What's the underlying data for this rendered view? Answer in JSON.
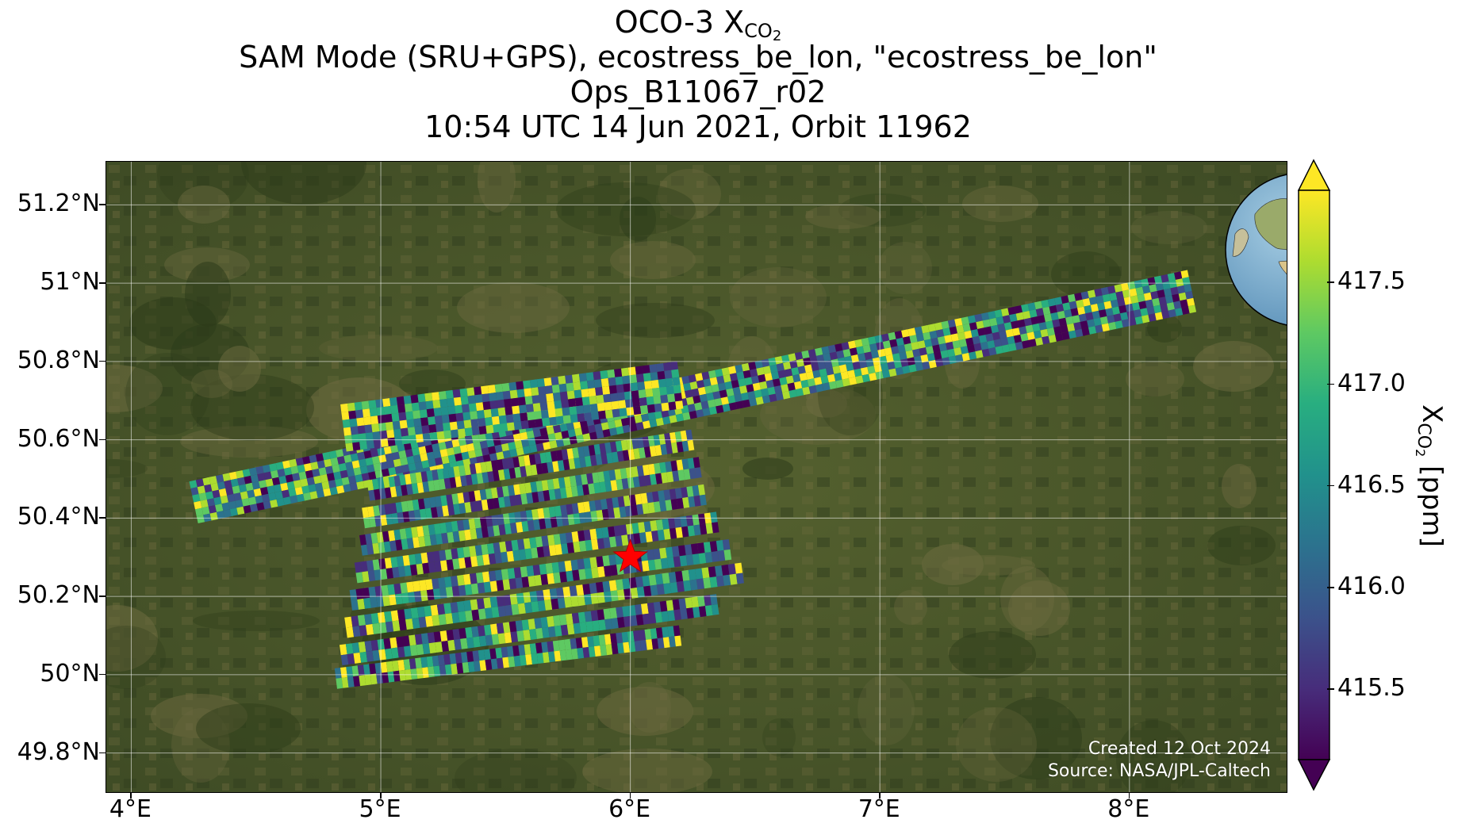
{
  "title": {
    "line1_prefix": "OCO-3 X",
    "line1_sub": "CO",
    "line1_sub2": "2",
    "line2": "SAM Mode (SRU+GPS), ecostress_be_lon, \"ecostress_be_lon\"",
    "line3": "Ops_B11067_r02",
    "line4": "10:54 UTC 14 Jun 2021, Orbit 11962"
  },
  "axes": {
    "lat_ticks": [
      "51.2°N",
      "51°N",
      "50.8°N",
      "50.6°N",
      "50.4°N",
      "50.2°N",
      "50°N",
      "49.8°N"
    ],
    "lat_values": [
      51.2,
      51.0,
      50.8,
      50.6,
      50.4,
      50.2,
      50.0,
      49.8
    ],
    "lon_ticks": [
      "4°E",
      "5°E",
      "6°E",
      "7°E",
      "8°E"
    ],
    "lon_values": [
      4,
      5,
      6,
      7,
      8
    ],
    "lon_range": [
      3.9,
      8.63
    ],
    "lat_range": [
      49.7,
      51.31
    ],
    "grid": true
  },
  "colorbar": {
    "label_prefix": "X",
    "label_sub": "CO",
    "label_sub2": "2",
    "label_suffix": " [ppm]",
    "ticks": [
      "417.5",
      "417.0",
      "416.5",
      "416.0",
      "415.5"
    ],
    "tick_values": [
      417.5,
      417.0,
      416.5,
      416.0,
      415.5
    ],
    "range": [
      415.15,
      417.95
    ],
    "colormap": "viridis",
    "extend": "both"
  },
  "target": {
    "lon": 6.0,
    "lat": 50.3,
    "marker": "star-icon",
    "color": "#ff0000"
  },
  "credits": {
    "created": "Created 12 Oct 2024",
    "source": "Source: NASA/JPL-Caltech"
  },
  "inset": {
    "type": "globe",
    "center_lon": 10,
    "center_lat": 45,
    "marker_color": "#ff0000"
  },
  "colors": {
    "land_dark": "#3b4a23",
    "land_mid": "#4e5c2e",
    "gridline": "#ffffff"
  }
}
